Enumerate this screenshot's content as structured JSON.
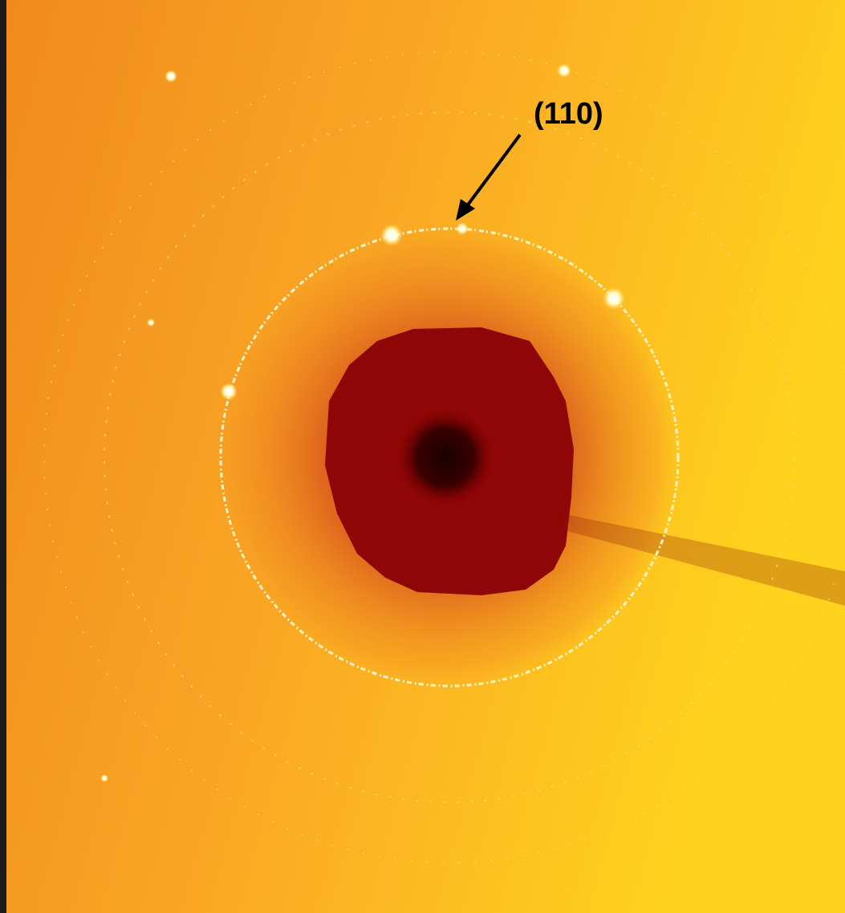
{
  "annotation": {
    "label": "(110)"
  }
}
